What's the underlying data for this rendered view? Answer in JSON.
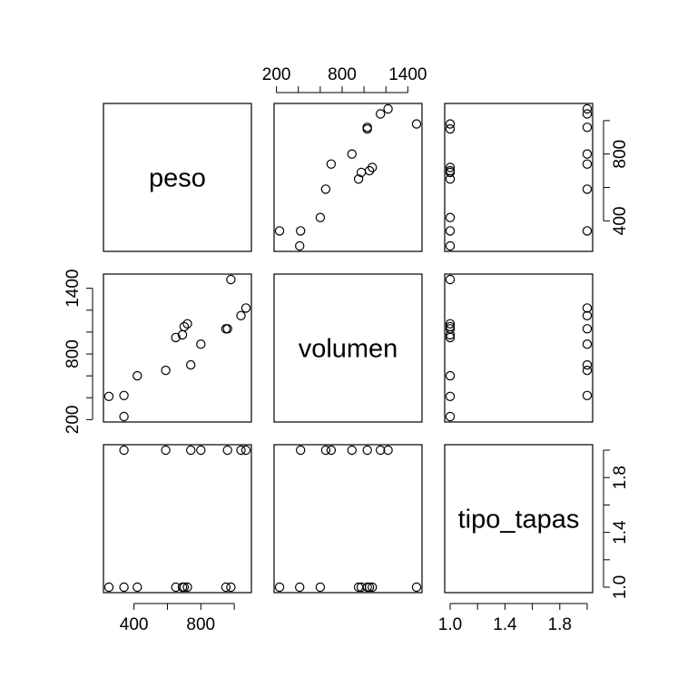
{
  "chart_data": {
    "type": "scatter",
    "variables": [
      "peso",
      "volumen",
      "tipo_tapas"
    ],
    "observations": {
      "peso": [
        250,
        340,
        340,
        420,
        590,
        650,
        690,
        700,
        720,
        740,
        800,
        950,
        960,
        980,
        1040,
        1070
      ],
      "volumen": [
        412,
        228,
        420,
        600,
        650,
        950,
        975,
        1050,
        1075,
        700,
        890,
        1030,
        1030,
        1480,
        1150,
        1220
      ],
      "tipo_tapas": [
        1,
        1,
        2,
        1,
        2,
        1,
        1,
        1,
        1,
        2,
        2,
        1,
        2,
        1,
        2,
        2
      ]
    },
    "axis_ticks": {
      "peso": [
        "400",
        "800"
      ],
      "volumen": [
        "200",
        "800",
        "1400"
      ],
      "tipo_tapas": [
        "1.0",
        "1.4",
        "1.8"
      ]
    },
    "axis_tick_values": {
      "peso": [
        400,
        600,
        800,
        1000
      ],
      "volumen": [
        200,
        400,
        600,
        800,
        1000,
        1200,
        1400
      ],
      "tipo_tapas": [
        1.0,
        1.2,
        1.4,
        1.6,
        1.8,
        2.0
      ]
    },
    "axis_ranges": {
      "peso": [
        250,
        1070
      ],
      "volumen": [
        228,
        1480
      ],
      "tipo_tapas": [
        1,
        2
      ]
    },
    "grid": false,
    "legend": "none"
  }
}
